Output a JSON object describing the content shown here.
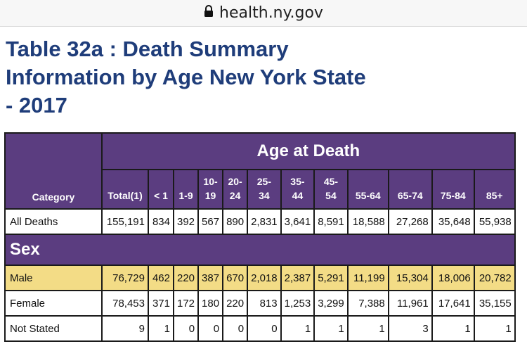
{
  "browser": {
    "url": "health.ny.gov"
  },
  "page": {
    "title": "Table 32a : Death Summary Information by Age New York State - 2017"
  },
  "table": {
    "group_header": "Age at Death",
    "category_header": "Category",
    "columns": [
      "Total(1)",
      "< 1",
      "1-9",
      "10-\n19",
      "20-\n24",
      "25-\n34",
      "35-\n44",
      "45-\n54",
      "55-64",
      "65-74",
      "75-84",
      "85+"
    ],
    "all_deaths": {
      "label": "All Deaths",
      "values": [
        "155,191",
        "834",
        "392",
        "567",
        "890",
        "2,831",
        "3,641",
        "8,591",
        "18,588",
        "27,268",
        "35,648",
        "55,938"
      ]
    },
    "section_label": "Sex",
    "rows": [
      {
        "label": "Male",
        "values": [
          "76,729",
          "462",
          "220",
          "387",
          "670",
          "2,018",
          "2,387",
          "5,291",
          "11,199",
          "15,304",
          "18,006",
          "20,782"
        ]
      },
      {
        "label": "Female",
        "values": [
          "78,453",
          "371",
          "172",
          "180",
          "220",
          "813",
          "1,253",
          "3,299",
          "7,388",
          "11,961",
          "17,641",
          "35,155"
        ]
      },
      {
        "label": "Not Stated",
        "values": [
          "9",
          "1",
          "0",
          "0",
          "0",
          "0",
          "1",
          "1",
          "1",
          "3",
          "1",
          "1"
        ]
      }
    ]
  },
  "colors": {
    "header_bg": "#5b3d80",
    "title": "#1f3d7a",
    "highlight_row": "#f3dc86"
  }
}
